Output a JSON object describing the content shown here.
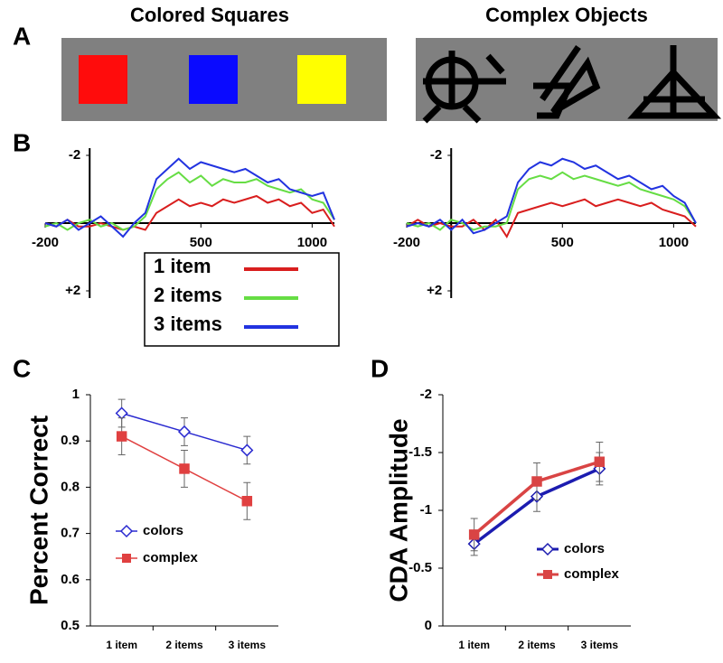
{
  "panel_a": {
    "label": "A",
    "titles": [
      "Colored Squares",
      "Complex Objects"
    ]
  },
  "chart_data": [
    {
      "type": "line",
      "panel_label": "B",
      "x": [
        -200,
        -150,
        -100,
        -50,
        0,
        50,
        100,
        150,
        200,
        250,
        300,
        350,
        400,
        450,
        500,
        550,
        600,
        650,
        700,
        750,
        800,
        850,
        900,
        950,
        1000,
        1050,
        1100
      ],
      "xlim": [
        -200,
        1100
      ],
      "xticks": [
        -200,
        500,
        1000
      ],
      "ylim": [
        2,
        -2
      ],
      "yticks": [
        -2,
        {
          "value": 2,
          "label": "+2"
        }
      ],
      "legend": "lower right",
      "series": [
        {
          "name": "1 item",
          "color": "#d91e1e",
          "values": [
            0,
            0.1,
            -0.1,
            0.1,
            0.1,
            0,
            0.1,
            0.2,
            0.1,
            0.2,
            -0.3,
            -0.5,
            -0.7,
            -0.5,
            -0.6,
            -0.5,
            -0.7,
            -0.6,
            -0.7,
            -0.8,
            -0.6,
            -0.7,
            -0.5,
            -0.6,
            -0.3,
            -0.4,
            0.1
          ]
        },
        {
          "name": "2 items",
          "color": "#66dd44",
          "values": [
            0.1,
            0,
            0.2,
            0,
            -0.1,
            0.1,
            0,
            0.2,
            0.1,
            -0.2,
            -1,
            -1.3,
            -1.5,
            -1.2,
            -1.4,
            -1.1,
            -1.3,
            -1.2,
            -1.2,
            -1.3,
            -1.1,
            -1,
            -0.9,
            -1,
            -0.7,
            -0.6,
            -0.1
          ]
        },
        {
          "name": "3 items",
          "color": "#2233e0",
          "values": [
            0,
            0.1,
            -0.1,
            0.2,
            0,
            -0.2,
            0.1,
            0.4,
            0,
            -0.3,
            -1.3,
            -1.6,
            -1.9,
            -1.6,
            -1.8,
            -1.7,
            -1.6,
            -1.5,
            -1.6,
            -1.4,
            -1.2,
            -1.3,
            -1,
            -0.9,
            -0.8,
            -0.9,
            -0.1
          ]
        }
      ]
    },
    {
      "type": "line",
      "x": [
        -200,
        -150,
        -100,
        -50,
        0,
        50,
        100,
        150,
        200,
        250,
        300,
        350,
        400,
        450,
        500,
        550,
        600,
        650,
        700,
        750,
        800,
        850,
        900,
        950,
        1000,
        1050,
        1100
      ],
      "xlim": [
        -200,
        1100
      ],
      "xticks": [
        -200,
        500,
        1000
      ],
      "ylim": [
        2,
        -2
      ],
      "yticks": [
        -2,
        {
          "value": 2,
          "label": "+2"
        }
      ],
      "series": [
        {
          "color": "#d91e1e",
          "values": [
            0.1,
            -0.1,
            0.1,
            0,
            0.1,
            0.1,
            -0.1,
            0.2,
            -0.1,
            0.4,
            -0.3,
            -0.4,
            -0.5,
            -0.6,
            -0.5,
            -0.6,
            -0.7,
            -0.5,
            -0.6,
            -0.7,
            -0.6,
            -0.5,
            -0.6,
            -0.4,
            -0.3,
            -0.2,
            0.1
          ]
        },
        {
          "color": "#66dd44",
          "values": [
            0,
            0.1,
            0,
            0.2,
            -0.1,
            0,
            0.2,
            0.1,
            0.1,
            0,
            -1,
            -1.3,
            -1.4,
            -1.3,
            -1.5,
            -1.3,
            -1.4,
            -1.3,
            -1.2,
            -1.1,
            -1.2,
            -1,
            -0.9,
            -0.8,
            -0.7,
            -0.5,
            0
          ]
        },
        {
          "color": "#2233e0",
          "values": [
            0.1,
            0,
            0.1,
            -0.1,
            0.2,
            -0.1,
            0.3,
            0.2,
            0,
            -0.2,
            -1.2,
            -1.6,
            -1.8,
            -1.7,
            -1.9,
            -1.8,
            -1.6,
            -1.7,
            -1.5,
            -1.3,
            -1.4,
            -1.2,
            -1,
            -1.1,
            -0.8,
            -0.6,
            0
          ]
        }
      ]
    },
    {
      "type": "line",
      "panel_label": "C",
      "y_label": "Percent Correct",
      "categories": [
        "1 item",
        "2 items",
        "3 items"
      ],
      "ylim": [
        0.5,
        1
      ],
      "yticks": [
        0.5,
        0.6,
        0.7,
        0.8,
        0.9,
        1
      ],
      "legend": "lower left",
      "line_width": 1.5,
      "series": [
        {
          "name": "colors",
          "color": "#2a2ad0",
          "marker": "diamond",
          "values": [
            0.96,
            0.92,
            0.88
          ],
          "errors": [
            0.03,
            0.03,
            0.03
          ]
        },
        {
          "name": "complex",
          "color": "#e04040",
          "marker": "square",
          "values": [
            0.91,
            0.84,
            0.77
          ],
          "errors": [
            0.04,
            0.04,
            0.04
          ]
        }
      ]
    },
    {
      "type": "line",
      "panel_label": "D",
      "y_label": "CDA Amplitude",
      "categories": [
        "1 item",
        "2 items",
        "3 items"
      ],
      "ylim": [
        0,
        -2
      ],
      "yticks": [
        0,
        -0.5,
        -1,
        -1.5,
        -2
      ],
      "legend": "lower right",
      "line_width": 3.5,
      "series": [
        {
          "name": "colors",
          "color": "#1c1cb0",
          "marker": "diamond",
          "values": [
            -0.71,
            -1.12,
            -1.36
          ],
          "errors": [
            0.1,
            0.13,
            0.14
          ]
        },
        {
          "name": "complex",
          "color": "#d94444",
          "marker": "square",
          "values": [
            -0.79,
            -1.25,
            -1.42
          ],
          "errors": [
            0.14,
            0.16,
            0.17
          ]
        }
      ]
    }
  ]
}
